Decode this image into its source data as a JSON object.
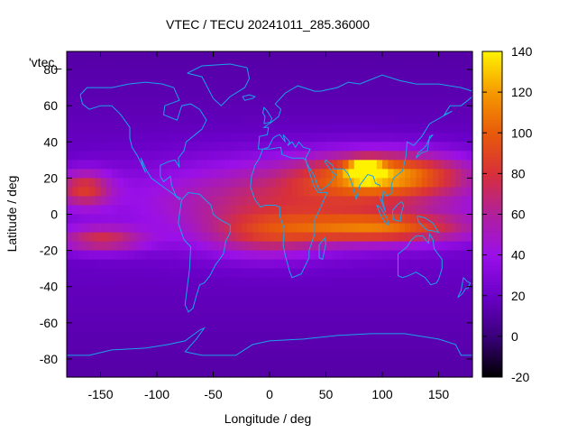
{
  "map": {
    "title": "VTEC / TECU 20241011_285.36000",
    "xlabel": "Longitude / deg",
    "ylabel": "Latitude / deg",
    "key_label": "'vtec_",
    "x_range": [
      -180,
      180
    ],
    "y_range": [
      -90,
      90
    ],
    "x_ticks": [
      -150,
      -100,
      -50,
      0,
      50,
      100,
      150
    ],
    "y_ticks": [
      -80,
      -60,
      -40,
      -20,
      0,
      20,
      40,
      60,
      80
    ],
    "colorbar": {
      "range": [
        -20,
        140
      ],
      "ticks": [
        -20,
        0,
        20,
        40,
        60,
        80,
        100,
        120,
        140
      ],
      "palette": [
        "#000000",
        "#3a007a",
        "#6a00c8",
        "#9a10e8",
        "#b0209c",
        "#d8303a",
        "#e85a0a",
        "#f59a00",
        "#fff200"
      ]
    },
    "coastline_color": "#1aa3e8",
    "ionosphere_features": [
      {
        "lat": 8,
        "lon": 30,
        "value": 75,
        "w_lon": 140,
        "w_lat": 22
      },
      {
        "lat": 22,
        "lon": 105,
        "value": 100,
        "w_lon": 70,
        "w_lat": 12
      },
      {
        "lat": 24,
        "lon": 85,
        "value": 125,
        "w_lon": 14,
        "w_lat": 5
      },
      {
        "lat": -8,
        "lon": 100,
        "value": 85,
        "w_lon": 80,
        "w_lat": 8
      },
      {
        "lat": -12,
        "lon": -5,
        "value": 60,
        "w_lon": 55,
        "w_lat": 12
      },
      {
        "lat": 14,
        "lon": -165,
        "value": 80,
        "w_lon": 25,
        "w_lat": 10
      },
      {
        "lat": -14,
        "lon": -150,
        "value": 75,
        "w_lon": 40,
        "w_lat": 7
      }
    ]
  }
}
